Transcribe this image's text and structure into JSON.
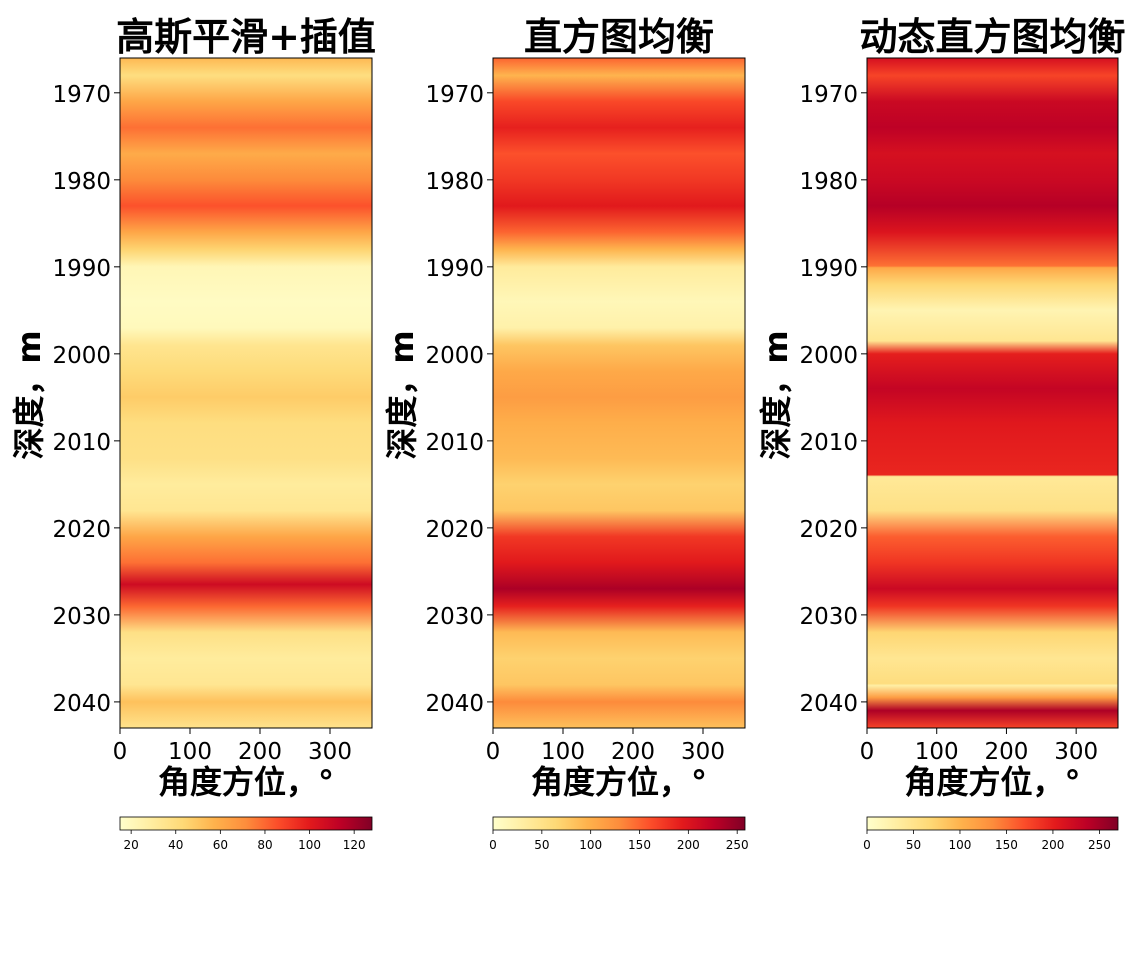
{
  "chart_data": [
    {
      "type": "heatmap",
      "title": "高斯平滑+插值",
      "xlabel": "角度方位，°",
      "ylabel": "深度，m",
      "x_range": [
        0,
        360
      ],
      "y_range": [
        1966,
        2043
      ],
      "x_ticks": [
        "0",
        "100",
        "200",
        "300"
      ],
      "y_ticks": [
        "1970",
        "1980",
        "1990",
        "2000",
        "2010",
        "2020",
        "2030",
        "2040"
      ],
      "colormap": "YlOrRd",
      "colorbar": {
        "range": [
          15,
          128
        ],
        "ticks": [
          "20",
          "40",
          "60",
          "80",
          "100",
          "120"
        ]
      },
      "bands": [
        {
          "depth": 1966,
          "value": 55
        },
        {
          "depth": 1968,
          "value": 40
        },
        {
          "depth": 1971,
          "value": 62
        },
        {
          "depth": 1974,
          "value": 78
        },
        {
          "depth": 1977,
          "value": 60
        },
        {
          "depth": 1980,
          "value": 72
        },
        {
          "depth": 1983,
          "value": 85
        },
        {
          "depth": 1986,
          "value": 62
        },
        {
          "depth": 1988,
          "value": 45
        },
        {
          "depth": 1990,
          "value": 22
        },
        {
          "depth": 1994,
          "value": 18
        },
        {
          "depth": 1997,
          "value": 20
        },
        {
          "depth": 1999,
          "value": 35
        },
        {
          "depth": 2002,
          "value": 42
        },
        {
          "depth": 2005,
          "value": 48
        },
        {
          "depth": 2008,
          "value": 40
        },
        {
          "depth": 2012,
          "value": 38
        },
        {
          "depth": 2015,
          "value": 30
        },
        {
          "depth": 2018,
          "value": 34
        },
        {
          "depth": 2021,
          "value": 62
        },
        {
          "depth": 2024,
          "value": 78
        },
        {
          "depth": 2026.5,
          "value": 108
        },
        {
          "depth": 2029,
          "value": 80
        },
        {
          "depth": 2032,
          "value": 38
        },
        {
          "depth": 2035,
          "value": 30
        },
        {
          "depth": 2038,
          "value": 34
        },
        {
          "depth": 2040,
          "value": 52
        },
        {
          "depth": 2043,
          "value": 36
        }
      ]
    },
    {
      "type": "heatmap",
      "title": "直方图均衡",
      "xlabel": "角度方位，°",
      "ylabel": "深度，m",
      "x_range": [
        0,
        360
      ],
      "y_range": [
        1966,
        2043
      ],
      "x_ticks": [
        "0",
        "100",
        "200",
        "300"
      ],
      "y_ticks": [
        "1970",
        "1980",
        "1990",
        "2000",
        "2010",
        "2020",
        "2030",
        "2040"
      ],
      "colormap": "YlOrRd",
      "colorbar": {
        "range": [
          0,
          258
        ],
        "ticks": [
          "0",
          "50",
          "100",
          "150",
          "200",
          "250"
        ]
      },
      "bands": [
        {
          "depth": 1966,
          "value": 150
        },
        {
          "depth": 1968,
          "value": 95
        },
        {
          "depth": 1971,
          "value": 165
        },
        {
          "depth": 1974,
          "value": 190
        },
        {
          "depth": 1977,
          "value": 160
        },
        {
          "depth": 1980,
          "value": 175
        },
        {
          "depth": 1983,
          "value": 195
        },
        {
          "depth": 1986,
          "value": 150
        },
        {
          "depth": 1988,
          "value": 95
        },
        {
          "depth": 1990,
          "value": 35
        },
        {
          "depth": 1994,
          "value": 15
        },
        {
          "depth": 1997,
          "value": 25
        },
        {
          "depth": 1999,
          "value": 80
        },
        {
          "depth": 2002,
          "value": 105
        },
        {
          "depth": 2005,
          "value": 115
        },
        {
          "depth": 2008,
          "value": 100
        },
        {
          "depth": 2012,
          "value": 90
        },
        {
          "depth": 2015,
          "value": 70
        },
        {
          "depth": 2018,
          "value": 80
        },
        {
          "depth": 2021,
          "value": 175
        },
        {
          "depth": 2024,
          "value": 195
        },
        {
          "depth": 2027,
          "value": 235
        },
        {
          "depth": 2029,
          "value": 190
        },
        {
          "depth": 2032,
          "value": 90
        },
        {
          "depth": 2035,
          "value": 70
        },
        {
          "depth": 2038,
          "value": 80
        },
        {
          "depth": 2040,
          "value": 130
        },
        {
          "depth": 2043,
          "value": 85
        }
      ]
    },
    {
      "type": "heatmap",
      "title": "动态直方图均衡",
      "xlabel": "角度方位，°",
      "ylabel": "深度，m",
      "x_range": [
        0,
        360
      ],
      "y_range": [
        1966,
        2043
      ],
      "x_ticks": [
        "0",
        "100",
        "200",
        "300"
      ],
      "y_ticks": [
        "1970",
        "1980",
        "1990",
        "2000",
        "2010",
        "2020",
        "2030",
        "2040"
      ],
      "colormap": "YlOrRd",
      "colorbar": {
        "range": [
          0,
          270
        ],
        "ticks": [
          "0",
          "50",
          "100",
          "150",
          "200",
          "250"
        ]
      },
      "bands": [
        {
          "depth": 1966,
          "value": 215
        },
        {
          "depth": 1968,
          "value": 175
        },
        {
          "depth": 1971,
          "value": 225
        },
        {
          "depth": 1974,
          "value": 235
        },
        {
          "depth": 1977,
          "value": 215
        },
        {
          "depth": 1980,
          "value": 225
        },
        {
          "depth": 1983,
          "value": 240
        },
        {
          "depth": 1986,
          "value": 210
        },
        {
          "depth": 1989.9,
          "value": 150
        },
        {
          "depth": 1990.1,
          "value": 110
        },
        {
          "depth": 1992,
          "value": 70
        },
        {
          "depth": 1995,
          "value": 20
        },
        {
          "depth": 1998.5,
          "value": 45
        },
        {
          "depth": 2000,
          "value": 200
        },
        {
          "depth": 2004,
          "value": 230
        },
        {
          "depth": 2008,
          "value": 205
        },
        {
          "depth": 2013.9,
          "value": 195
        },
        {
          "depth": 2014.1,
          "value": 40
        },
        {
          "depth": 2018,
          "value": 55
        },
        {
          "depth": 2021,
          "value": 160
        },
        {
          "depth": 2024,
          "value": 185
        },
        {
          "depth": 2027,
          "value": 225
        },
        {
          "depth": 2029,
          "value": 185
        },
        {
          "depth": 2032,
          "value": 70
        },
        {
          "depth": 2035,
          "value": 45
        },
        {
          "depth": 2037.9,
          "value": 60
        },
        {
          "depth": 2038.1,
          "value": 30
        },
        {
          "depth": 2039.5,
          "value": 120
        },
        {
          "depth": 2041,
          "value": 245
        },
        {
          "depth": 2043,
          "value": 175
        }
      ]
    }
  ]
}
